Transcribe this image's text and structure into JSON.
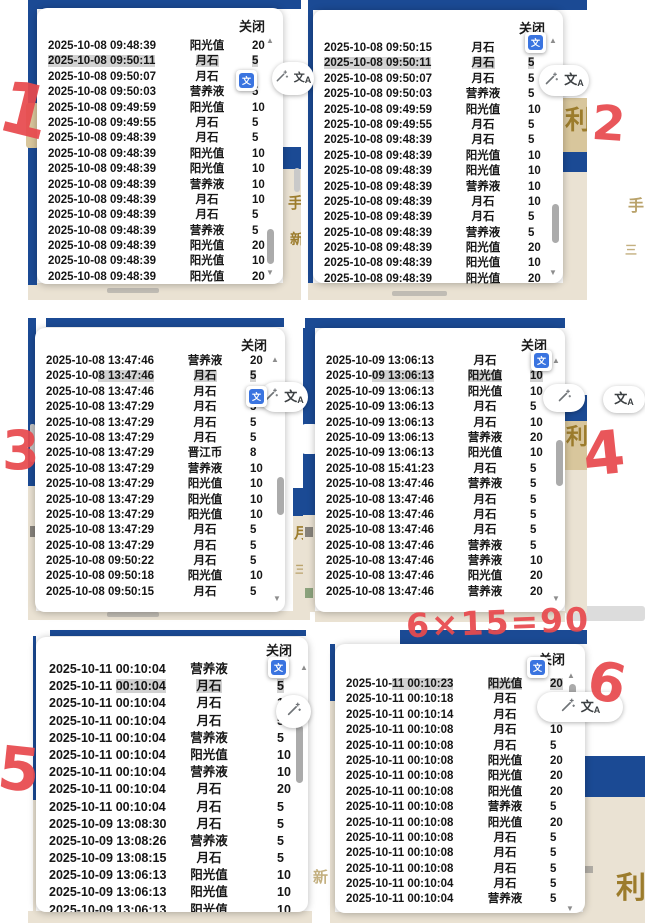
{
  "dialog": {
    "close_label": "关闭"
  },
  "icons": {
    "scroll_up": "▲",
    "scroll_down": "▼",
    "translate_glyph": "文",
    "pill_zh": "文",
    "pill_a": "A"
  },
  "annotation_color": "#e84a4e",
  "annotations": {
    "labels": [
      {
        "text": "1"
      },
      {
        "text": "2"
      },
      {
        "text": "3"
      },
      {
        "text": "4"
      },
      {
        "text": "5"
      },
      {
        "text": "6"
      }
    ],
    "note": "6×15=90"
  },
  "bg": {
    "p1_char_a": "手",
    "p1_char_b": "新",
    "p2_char": "利",
    "p2_faint_a": "手",
    "p2_faint_b": "三",
    "p3_char_a": "月",
    "p3_char_b": "三",
    "p4_char": "利",
    "p5_faint": "新",
    "p6_char": "利"
  },
  "panels": [
    {
      "id": 1,
      "hl_row": 1,
      "hl_pre": "",
      "rows": [
        [
          "2025-10-08 09:48:39",
          "阳光值",
          "20"
        ],
        [
          "2025-10-08 09:50:11",
          "月石",
          "5"
        ],
        [
          "2025-10-08 09:50:07",
          "月石",
          ""
        ],
        [
          "2025-10-08 09:50:03",
          "营养液",
          "5"
        ],
        [
          "2025-10-08 09:49:59",
          "阳光值",
          "10"
        ],
        [
          "2025-10-08 09:49:55",
          "月石",
          "5"
        ],
        [
          "2025-10-08 09:48:39",
          "月石",
          "5"
        ],
        [
          "2025-10-08 09:48:39",
          "阳光值",
          "10"
        ],
        [
          "2025-10-08 09:48:39",
          "阳光值",
          "10"
        ],
        [
          "2025-10-08 09:48:39",
          "营养液",
          "10"
        ],
        [
          "2025-10-08 09:48:39",
          "月石",
          "10"
        ],
        [
          "2025-10-08 09:48:39",
          "月石",
          "5"
        ],
        [
          "2025-10-08 09:48:39",
          "营养液",
          "5"
        ],
        [
          "2025-10-08 09:48:39",
          "阳光值",
          "20"
        ],
        [
          "2025-10-08 09:48:39",
          "阳光值",
          "10"
        ],
        [
          "2025-10-08 09:48:39",
          "阳光值",
          "20"
        ]
      ]
    },
    {
      "id": 2,
      "hl_row": 1,
      "hl_pre": "",
      "rows": [
        [
          "2025-10-08 09:50:15",
          "月石",
          ""
        ],
        [
          "2025-10-08 09:50:11",
          "月石",
          "5"
        ],
        [
          "2025-10-08 09:50:07",
          "月石",
          "5"
        ],
        [
          "2025-10-08 09:50:03",
          "营养液",
          "5"
        ],
        [
          "2025-10-08 09:49:59",
          "阳光值",
          "10"
        ],
        [
          "2025-10-08 09:49:55",
          "月石",
          "5"
        ],
        [
          "2025-10-08 09:48:39",
          "月石",
          "5"
        ],
        [
          "2025-10-08 09:48:39",
          "阳光值",
          "10"
        ],
        [
          "2025-10-08 09:48:39",
          "阳光值",
          "10"
        ],
        [
          "2025-10-08 09:48:39",
          "营养液",
          "10"
        ],
        [
          "2025-10-08 09:48:39",
          "月石",
          "10"
        ],
        [
          "2025-10-08 09:48:39",
          "月石",
          "5"
        ],
        [
          "2025-10-08 09:48:39",
          "营养液",
          "5"
        ],
        [
          "2025-10-08 09:48:39",
          "阳光值",
          "20"
        ],
        [
          "2025-10-08 09:48:39",
          "阳光值",
          "10"
        ],
        [
          "2025-10-08 09:48:39",
          "阳光值",
          "20"
        ]
      ]
    },
    {
      "id": 3,
      "hl_row": 1,
      "hl_pre": "2025-10-0",
      "rows": [
        [
          "2025-10-08 13:47:46",
          "营养液",
          "20"
        ],
        [
          "2025-10-08 13:47:46",
          "月石",
          "5"
        ],
        [
          "2025-10-08 13:47:46",
          "月石",
          ""
        ],
        [
          "2025-10-08 13:47:29",
          "月石",
          "5"
        ],
        [
          "2025-10-08 13:47:29",
          "月石",
          "5"
        ],
        [
          "2025-10-08 13:47:29",
          "月石",
          "5"
        ],
        [
          "2025-10-08 13:47:29",
          "晋江币",
          "8"
        ],
        [
          "2025-10-08 13:47:29",
          "营养液",
          "10"
        ],
        [
          "2025-10-08 13:47:29",
          "阳光值",
          "10"
        ],
        [
          "2025-10-08 13:47:29",
          "阳光值",
          "10"
        ],
        [
          "2025-10-08 13:47:29",
          "阳光值",
          "10"
        ],
        [
          "2025-10-08 13:47:29",
          "月石",
          "5"
        ],
        [
          "2025-10-08 13:47:29",
          "月石",
          "5"
        ],
        [
          "2025-10-08 09:50:22",
          "月石",
          "5"
        ],
        [
          "2025-10-08 09:50:18",
          "阳光值",
          "10"
        ],
        [
          "2025-10-08 09:50:15",
          "月石",
          "5"
        ]
      ]
    },
    {
      "id": 4,
      "hl_row": 1,
      "hl_pre": "2025-10-",
      "rows": [
        [
          "2025-10-09 13:06:13",
          "月石",
          ""
        ],
        [
          "2025-10-09 13:06:13",
          "阳光值",
          "10"
        ],
        [
          "2025-10-09 13:06:13",
          "阳光值",
          "10"
        ],
        [
          "2025-10-09 13:06:13",
          "月石",
          "5"
        ],
        [
          "2025-10-09 13:06:13",
          "月石",
          "10"
        ],
        [
          "2025-10-09 13:06:13",
          "营养液",
          "20"
        ],
        [
          "2025-10-09 13:06:13",
          "阳光值",
          "10"
        ],
        [
          "2025-10-08 15:41:23",
          "月石",
          "5"
        ],
        [
          "2025-10-08 13:47:46",
          "营养液",
          "5"
        ],
        [
          "2025-10-08 13:47:46",
          "月石",
          "5"
        ],
        [
          "2025-10-08 13:47:46",
          "月石",
          "5"
        ],
        [
          "2025-10-08 13:47:46",
          "月石",
          "5"
        ],
        [
          "2025-10-08 13:47:46",
          "营养液",
          "5"
        ],
        [
          "2025-10-08 13:47:46",
          "营养液",
          "10"
        ],
        [
          "2025-10-08 13:47:46",
          "阳光值",
          "20"
        ],
        [
          "2025-10-08 13:47:46",
          "营养液",
          "20"
        ]
      ]
    },
    {
      "id": 5,
      "hl_row": 1,
      "hl_pre": "2025-10-11 ",
      "rows": [
        [
          "2025-10-11 00:10:04",
          "营养液",
          ""
        ],
        [
          "2025-10-11 00:10:04",
          "月石",
          "5"
        ],
        [
          "2025-10-11 00:10:04",
          "月石",
          "10"
        ],
        [
          "2025-10-11 00:10:04",
          "月石",
          "5"
        ],
        [
          "2025-10-11 00:10:04",
          "营养液",
          "5"
        ],
        [
          "2025-10-11 00:10:04",
          "阳光值",
          "10"
        ],
        [
          "2025-10-11 00:10:04",
          "营养液",
          "10"
        ],
        [
          "2025-10-11 00:10:04",
          "月石",
          "20"
        ],
        [
          "2025-10-11 00:10:04",
          "月石",
          "5"
        ],
        [
          "2025-10-09 13:08:30",
          "月石",
          "5"
        ],
        [
          "2025-10-09 13:08:26",
          "营养液",
          "5"
        ],
        [
          "2025-10-09 13:08:15",
          "月石",
          "5"
        ],
        [
          "2025-10-09 13:06:13",
          "阳光值",
          "10"
        ],
        [
          "2025-10-09 13:06:13",
          "阳光值",
          "10"
        ],
        [
          "2025-10-09 13:06:13",
          "阳光值",
          "10"
        ]
      ]
    },
    {
      "id": 6,
      "hl_row": 0,
      "hl_pre": "2025-10-",
      "rows": [
        [
          "2025-10-11 00:10:23",
          "阳光值",
          "20"
        ],
        [
          "2025-10-11 00:10:18",
          "月石",
          ""
        ],
        [
          "2025-10-11 00:10:14",
          "月石",
          ""
        ],
        [
          "2025-10-11 00:10:08",
          "月石",
          "10"
        ],
        [
          "2025-10-11 00:10:08",
          "月石",
          "5"
        ],
        [
          "2025-10-11 00:10:08",
          "阳光值",
          "20"
        ],
        [
          "2025-10-11 00:10:08",
          "阳光值",
          "20"
        ],
        [
          "2025-10-11 00:10:08",
          "阳光值",
          "20"
        ],
        [
          "2025-10-11 00:10:08",
          "营养液",
          "5"
        ],
        [
          "2025-10-11 00:10:08",
          "阳光值",
          "20"
        ],
        [
          "2025-10-11 00:10:08",
          "月石",
          "5"
        ],
        [
          "2025-10-11 00:10:08",
          "月石",
          "5"
        ],
        [
          "2025-10-11 00:10:08",
          "月石",
          "5"
        ],
        [
          "2025-10-11 00:10:04",
          "月石",
          "5"
        ],
        [
          "2025-10-11 00:10:04",
          "营养液",
          "5"
        ]
      ]
    }
  ]
}
